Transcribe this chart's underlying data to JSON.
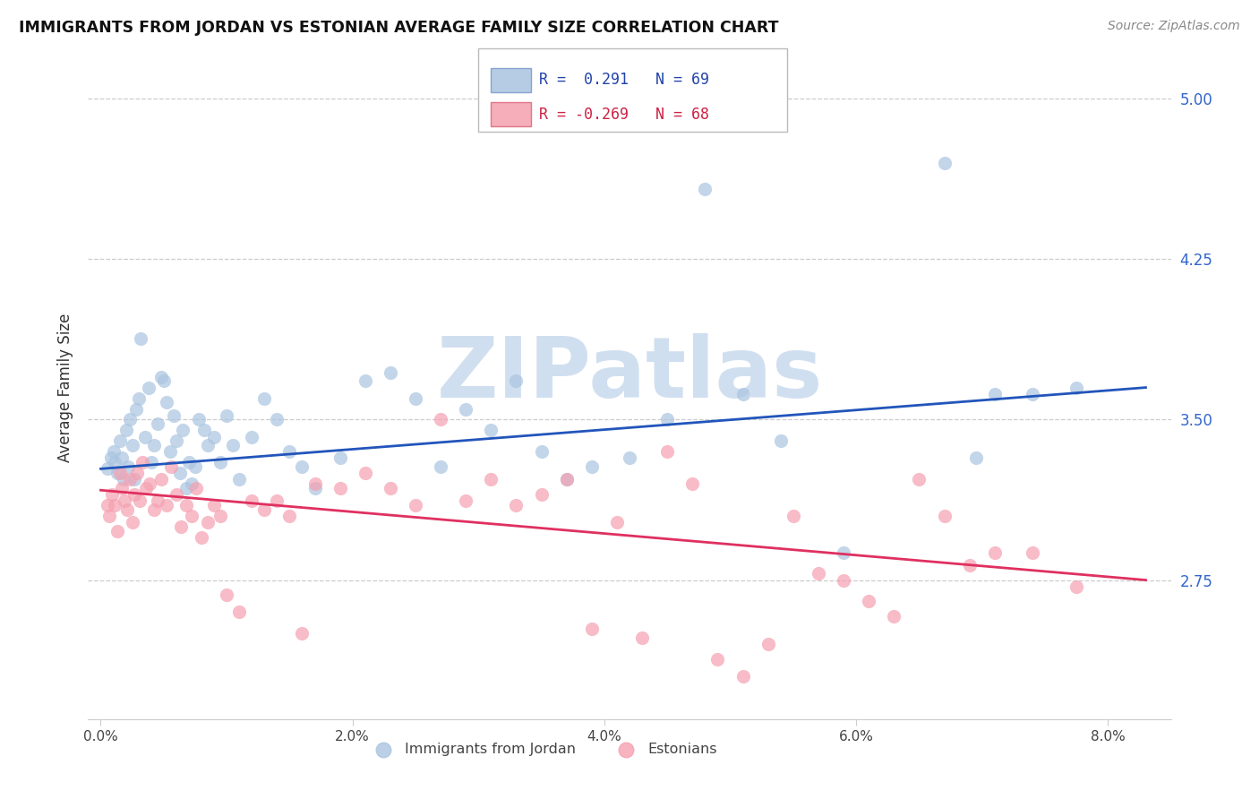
{
  "title": "IMMIGRANTS FROM JORDAN VS ESTONIAN AVERAGE FAMILY SIZE CORRELATION CHART",
  "source_text": "Source: ZipAtlas.com",
  "ylabel": "Average Family Size",
  "xlabel_ticks": [
    "0.0%",
    "2.0%",
    "4.0%",
    "6.0%",
    "8.0%"
  ],
  "xlabel_vals": [
    0.0,
    2.0,
    4.0,
    6.0,
    8.0
  ],
  "ylim": [
    2.1,
    5.2
  ],
  "xlim": [
    -0.1,
    8.5
  ],
  "yticks": [
    2.75,
    3.5,
    4.25,
    5.0
  ],
  "ytick_labels": [
    "2.75",
    "3.50",
    "4.25",
    "5.00"
  ],
  "gridline_color": "#cccccc",
  "background_color": "#ffffff",
  "blue_color": "#aac4e0",
  "pink_color": "#f5a0b0",
  "trend_blue": "#2255bb",
  "trend_pink": "#e03060",
  "watermark_color": "#d0dff0",
  "legend_r_blue": "0.291",
  "legend_n_blue": "69",
  "legend_r_pink": "-0.269",
  "legend_n_pink": "68",
  "series1_label": "Immigrants from Jordan",
  "series2_label": "Estonians",
  "blue_points": [
    [
      0.05,
      3.27
    ],
    [
      0.08,
      3.32
    ],
    [
      0.1,
      3.35
    ],
    [
      0.11,
      3.3
    ],
    [
      0.13,
      3.25
    ],
    [
      0.15,
      3.4
    ],
    [
      0.17,
      3.32
    ],
    [
      0.18,
      3.22
    ],
    [
      0.2,
      3.45
    ],
    [
      0.22,
      3.28
    ],
    [
      0.23,
      3.5
    ],
    [
      0.25,
      3.38
    ],
    [
      0.27,
      3.22
    ],
    [
      0.28,
      3.55
    ],
    [
      0.3,
      3.6
    ],
    [
      0.32,
      3.88
    ],
    [
      0.35,
      3.42
    ],
    [
      0.38,
      3.65
    ],
    [
      0.4,
      3.3
    ],
    [
      0.42,
      3.38
    ],
    [
      0.45,
      3.48
    ],
    [
      0.48,
      3.7
    ],
    [
      0.5,
      3.68
    ],
    [
      0.52,
      3.58
    ],
    [
      0.55,
      3.35
    ],
    [
      0.58,
      3.52
    ],
    [
      0.6,
      3.4
    ],
    [
      0.63,
      3.25
    ],
    [
      0.65,
      3.45
    ],
    [
      0.68,
      3.18
    ],
    [
      0.7,
      3.3
    ],
    [
      0.72,
      3.2
    ],
    [
      0.75,
      3.28
    ],
    [
      0.78,
      3.5
    ],
    [
      0.82,
      3.45
    ],
    [
      0.85,
      3.38
    ],
    [
      0.9,
      3.42
    ],
    [
      0.95,
      3.3
    ],
    [
      1.0,
      3.52
    ],
    [
      1.05,
      3.38
    ],
    [
      1.1,
      3.22
    ],
    [
      1.2,
      3.42
    ],
    [
      1.3,
      3.6
    ],
    [
      1.4,
      3.5
    ],
    [
      1.5,
      3.35
    ],
    [
      1.6,
      3.28
    ],
    [
      1.7,
      3.18
    ],
    [
      1.9,
      3.32
    ],
    [
      2.1,
      3.68
    ],
    [
      2.3,
      3.72
    ],
    [
      2.5,
      3.6
    ],
    [
      2.7,
      3.28
    ],
    [
      2.9,
      3.55
    ],
    [
      3.1,
      3.45
    ],
    [
      3.3,
      3.68
    ],
    [
      3.5,
      3.35
    ],
    [
      3.7,
      3.22
    ],
    [
      3.9,
      3.28
    ],
    [
      4.2,
      3.32
    ],
    [
      4.5,
      3.5
    ],
    [
      4.8,
      4.58
    ],
    [
      5.1,
      3.62
    ],
    [
      5.4,
      3.4
    ],
    [
      5.9,
      2.88
    ],
    [
      6.7,
      4.7
    ],
    [
      6.95,
      3.32
    ],
    [
      7.1,
      3.62
    ],
    [
      7.4,
      3.62
    ],
    [
      7.75,
      3.65
    ]
  ],
  "pink_points": [
    [
      0.05,
      3.1
    ],
    [
      0.07,
      3.05
    ],
    [
      0.09,
      3.15
    ],
    [
      0.11,
      3.1
    ],
    [
      0.13,
      2.98
    ],
    [
      0.15,
      3.25
    ],
    [
      0.17,
      3.18
    ],
    [
      0.19,
      3.12
    ],
    [
      0.21,
      3.08
    ],
    [
      0.23,
      3.22
    ],
    [
      0.25,
      3.02
    ],
    [
      0.27,
      3.15
    ],
    [
      0.29,
      3.25
    ],
    [
      0.31,
      3.12
    ],
    [
      0.33,
      3.3
    ],
    [
      0.36,
      3.18
    ],
    [
      0.39,
      3.2
    ],
    [
      0.42,
      3.08
    ],
    [
      0.45,
      3.12
    ],
    [
      0.48,
      3.22
    ],
    [
      0.52,
      3.1
    ],
    [
      0.56,
      3.28
    ],
    [
      0.6,
      3.15
    ],
    [
      0.64,
      3.0
    ],
    [
      0.68,
      3.1
    ],
    [
      0.72,
      3.05
    ],
    [
      0.76,
      3.18
    ],
    [
      0.8,
      2.95
    ],
    [
      0.85,
      3.02
    ],
    [
      0.9,
      3.1
    ],
    [
      0.95,
      3.05
    ],
    [
      1.0,
      2.68
    ],
    [
      1.1,
      2.6
    ],
    [
      1.2,
      3.12
    ],
    [
      1.3,
      3.08
    ],
    [
      1.4,
      3.12
    ],
    [
      1.5,
      3.05
    ],
    [
      1.6,
      2.5
    ],
    [
      1.7,
      3.2
    ],
    [
      1.9,
      3.18
    ],
    [
      2.1,
      3.25
    ],
    [
      2.3,
      3.18
    ],
    [
      2.5,
      3.1
    ],
    [
      2.7,
      3.5
    ],
    [
      2.9,
      3.12
    ],
    [
      3.1,
      3.22
    ],
    [
      3.3,
      3.1
    ],
    [
      3.5,
      3.15
    ],
    [
      3.7,
      3.22
    ],
    [
      3.9,
      2.52
    ],
    [
      4.1,
      3.02
    ],
    [
      4.3,
      2.48
    ],
    [
      4.5,
      3.35
    ],
    [
      4.7,
      3.2
    ],
    [
      4.9,
      2.38
    ],
    [
      5.1,
      2.3
    ],
    [
      5.3,
      2.45
    ],
    [
      5.5,
      3.05
    ],
    [
      5.7,
      2.78
    ],
    [
      5.9,
      2.75
    ],
    [
      6.1,
      2.65
    ],
    [
      6.3,
      2.58
    ],
    [
      6.5,
      3.22
    ],
    [
      6.7,
      3.05
    ],
    [
      6.9,
      2.82
    ],
    [
      7.1,
      2.88
    ],
    [
      7.4,
      2.88
    ],
    [
      7.75,
      2.72
    ]
  ],
  "blue_trend_x": [
    0.0,
    8.3
  ],
  "blue_trend_y": [
    3.27,
    3.65
  ],
  "pink_trend_x": [
    0.0,
    8.3
  ],
  "pink_trend_y": [
    3.17,
    2.75
  ]
}
